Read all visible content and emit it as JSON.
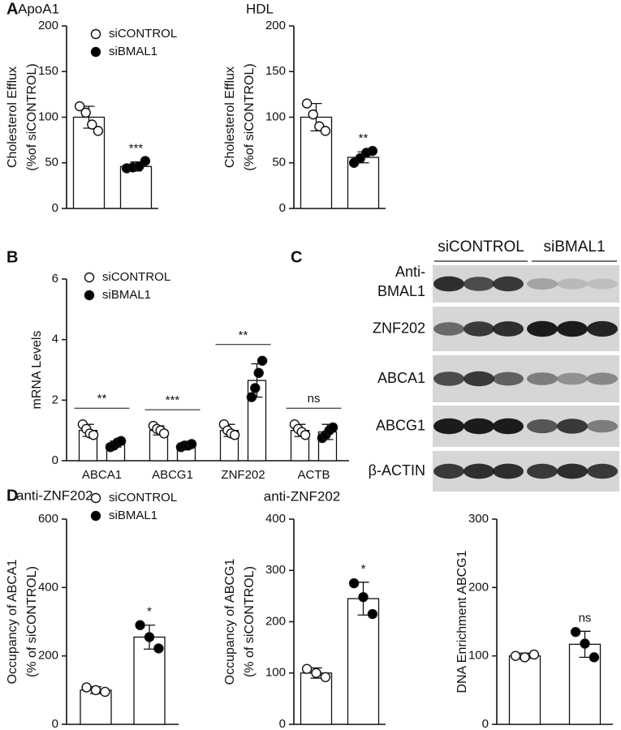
{
  "panel_labels": [
    "A",
    "B",
    "C",
    "D"
  ],
  "chart_data": [
    {
      "type": "bar",
      "title": "ApoA1",
      "ylabel": [
        "Cholesterol Efflux",
        "(%of siCONTROL)"
      ],
      "categories": [
        null
      ],
      "ylim": [
        0,
        200
      ],
      "yticks": [
        0,
        50,
        100,
        150,
        200
      ],
      "legend": true,
      "annotations": [
        "***"
      ],
      "series": [
        {
          "name": "siCONTROL",
          "color": "#ffffff",
          "values": [
            100
          ],
          "errors": [
            12
          ],
          "points": [
            [
              112,
              105,
              92,
              85
            ]
          ]
        },
        {
          "name": "siBMAL1",
          "color": "#000000",
          "values": [
            46
          ],
          "errors": [
            5
          ],
          "points": [
            [
              44,
              45,
              46,
              52
            ]
          ]
        }
      ]
    },
    {
      "type": "bar",
      "title": "HDL",
      "ylabel": [
        "Cholesterol Efflux",
        "(%of siCONTROL)"
      ],
      "categories": [
        null
      ],
      "ylim": [
        0,
        200
      ],
      "yticks": [
        0,
        50,
        100,
        150,
        200
      ],
      "legend": false,
      "annotations": [
        "**"
      ],
      "series": [
        {
          "name": "siCONTROL",
          "color": "#ffffff",
          "values": [
            100
          ],
          "errors": [
            15
          ],
          "points": [
            [
              115,
              103,
              90,
              85
            ]
          ]
        },
        {
          "name": "siBMAL1",
          "color": "#000000",
          "values": [
            56
          ],
          "errors": [
            6
          ],
          "points": [
            [
              50,
              55,
              61,
              63
            ]
          ]
        }
      ]
    },
    {
      "type": "bar",
      "ylabel": [
        "mRNA Levels"
      ],
      "categories": [
        "ABCA1",
        "ABCG1",
        "ZNF202",
        "ACTB"
      ],
      "ylim": [
        0,
        6
      ],
      "yticks": [
        0,
        2,
        4,
        6
      ],
      "legend": true,
      "annotations": [
        "**",
        "***",
        "**",
        "ns"
      ],
      "series": [
        {
          "name": "siCONTROL",
          "color": "#ffffff",
          "values": [
            1,
            1,
            1,
            1
          ],
          "errors": [
            0.2,
            0.15,
            0.2,
            0.2
          ],
          "points": [
            [
              1.2,
              1.05,
              0.9,
              0.85
            ],
            [
              1.15,
              1.05,
              1.0,
              0.9
            ],
            [
              1.2,
              1.0,
              0.9,
              0.85
            ],
            [
              1.2,
              1.05,
              0.95,
              0.85
            ]
          ]
        },
        {
          "name": "siBMAL1",
          "color": "#000000",
          "values": [
            0.55,
            0.5,
            2.65,
            0.95
          ],
          "errors": [
            0.1,
            0.05,
            0.55,
            0.25
          ],
          "points": [
            [
              0.45,
              0.5,
              0.6,
              0.65
            ],
            [
              0.45,
              0.5,
              0.5,
              0.55
            ],
            [
              2.1,
              2.4,
              2.9,
              3.3
            ],
            [
              0.75,
              0.85,
              1.0,
              1.1
            ]
          ]
        }
      ]
    },
    {
      "type": "bar",
      "title": "anti-ZNF202",
      "ylabel": [
        "Occupancy of ABCA1",
        "(% of siCONTROL)"
      ],
      "categories": [
        null
      ],
      "ylim": [
        0,
        600
      ],
      "yticks": [
        0,
        200,
        400,
        600
      ],
      "legend": true,
      "annotations": [
        "*"
      ],
      "series": [
        {
          "name": "siCONTROL",
          "color": "#ffffff",
          "values": [
            100
          ],
          "errors": [
            10
          ],
          "points": [
            [
              108,
              100,
              95
            ]
          ]
        },
        {
          "name": "siBMAL1",
          "color": "#000000",
          "values": [
            255
          ],
          "errors": [
            35
          ],
          "points": [
            [
              290,
              255,
              222
            ]
          ]
        }
      ]
    },
    {
      "type": "bar",
      "title": "anti-ZNF202",
      "ylabel": [
        "Occupancy of ABCG1",
        "(% of siCONTROL)"
      ],
      "categories": [
        null
      ],
      "ylim": [
        0,
        400
      ],
      "yticks": [
        0,
        100,
        200,
        300,
        400
      ],
      "legend": false,
      "annotations": [
        "*"
      ],
      "series": [
        {
          "name": "siCONTROL",
          "color": "#ffffff",
          "values": [
            100
          ],
          "errors": [
            10
          ],
          "points": [
            [
              108,
              100,
              92
            ]
          ]
        },
        {
          "name": "siBMAL1",
          "color": "#000000",
          "values": [
            245
          ],
          "errors": [
            32
          ],
          "points": [
            [
              275,
              248,
              215
            ]
          ]
        }
      ]
    },
    {
      "type": "bar",
      "ylabel": [
        "DNA Enrichment ABCG1"
      ],
      "categories": [
        null
      ],
      "ylim": [
        0,
        300
      ],
      "yticks": [
        0,
        100,
        200,
        300
      ],
      "legend": false,
      "annotations": [
        "ns"
      ],
      "series": [
        {
          "name": "siCONTROL",
          "color": "#ffffff",
          "values": [
            100
          ],
          "errors": [
            4
          ],
          "points": [
            [
              100,
              98,
              102
            ]
          ]
        },
        {
          "name": "siBMAL1",
          "color": "#000000",
          "values": [
            117
          ],
          "errors": [
            19
          ],
          "points": [
            [
              135,
              118,
              98
            ]
          ]
        }
      ]
    }
  ],
  "blot": {
    "groups": [
      "siCONTROL",
      "siBMAL1"
    ],
    "rows": [
      [
        "Anti-",
        "BMAL1"
      ],
      [
        "ZNF202"
      ],
      [
        "ABCA1"
      ],
      [
        "ABCG1"
      ],
      [
        "β-ACTIN"
      ]
    ]
  }
}
